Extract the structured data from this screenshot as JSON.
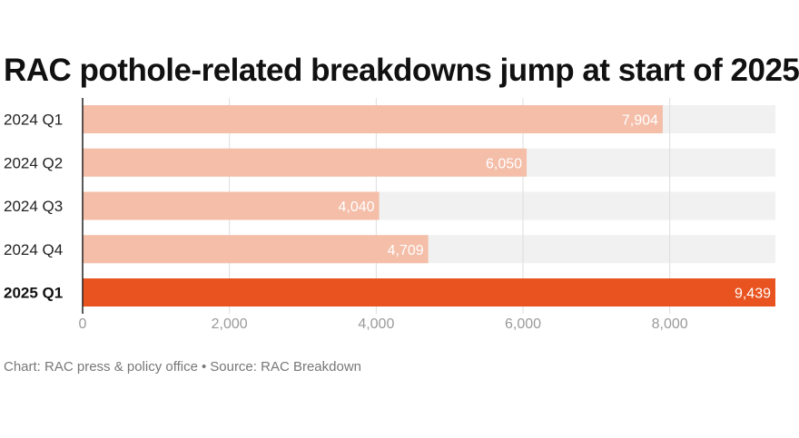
{
  "chart_data": {
    "type": "bar",
    "orientation": "horizontal",
    "title": "RAC pothole-related breakdowns jump at start of 2025",
    "categories": [
      "2024 Q1",
      "2024 Q2",
      "2024 Q3",
      "2024 Q4",
      "2025 Q1"
    ],
    "values": [
      7904,
      6050,
      4040,
      4709,
      9439
    ],
    "value_labels": [
      "7,904",
      "6,050",
      "4,040",
      "4,709",
      "9,439"
    ],
    "highlight_index": 4,
    "xlim": [
      0,
      9439
    ],
    "x_ticks": [
      0,
      2000,
      4000,
      6000,
      8000
    ],
    "x_tick_labels": [
      "0",
      "2,000",
      "4,000",
      "6,000",
      "8,000"
    ],
    "grid": true,
    "xlabel": "",
    "ylabel": "",
    "colors": {
      "bar": "#f4bea9",
      "bar_highlight": "#e8531f",
      "track": "#f1f1f1",
      "grid": "#dddddd",
      "axis": "#222222"
    }
  },
  "footer": {
    "chart_credit": "Chart: RAC press & policy office",
    "separator": "•",
    "source": "Source: RAC Breakdown"
  }
}
